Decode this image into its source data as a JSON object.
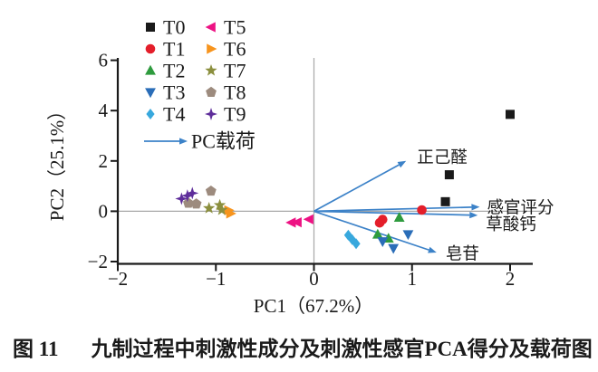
{
  "caption": {
    "tag": "图 11",
    "text": "九制过程中刺激性成分及刺激性感官PCA得分及载荷图"
  },
  "colors": {
    "axis": "#1a1a1a",
    "crosshair": "#a8a8a8",
    "loading_arrow": "#3c82c8"
  },
  "chart_data": {
    "type": "scatter",
    "title": "",
    "xlabel": "PC1（67.2%）",
    "ylabel": "PC2（25.1%）",
    "xlim": [
      -2,
      2.2
    ],
    "ylim": [
      -2.1,
      6
    ],
    "xticks": [
      -2,
      -1,
      0,
      1,
      2
    ],
    "yticks": [
      6,
      4,
      2,
      0,
      -2
    ],
    "xtick_labels": [
      "−2",
      "−1",
      "0",
      "1",
      "2"
    ],
    "ytick_labels": [
      "6",
      "4",
      "2",
      "0",
      "−2"
    ],
    "grid": false,
    "crosshair_at_origin": true,
    "legend_position": "top-left-inside",
    "series": [
      {
        "name": "T0",
        "marker": "square",
        "color": "#1a1a1a",
        "points": [
          [
            2.0,
            3.85
          ],
          [
            1.38,
            1.45
          ],
          [
            1.34,
            0.38
          ]
        ]
      },
      {
        "name": "T1",
        "marker": "circle",
        "color": "#e41e2a",
        "points": [
          [
            1.1,
            0.05
          ],
          [
            0.7,
            -0.33
          ],
          [
            0.67,
            -0.46
          ]
        ]
      },
      {
        "name": "T2",
        "marker": "triangle-up",
        "color": "#2e9b3e",
        "points": [
          [
            0.87,
            -0.25
          ],
          [
            0.65,
            -0.92
          ],
          [
            0.76,
            -1.08
          ]
        ]
      },
      {
        "name": "T3",
        "marker": "triangle-down",
        "color": "#2a6db8",
        "points": [
          [
            0.96,
            -0.92
          ],
          [
            0.7,
            -1.2
          ],
          [
            0.81,
            -1.47
          ]
        ]
      },
      {
        "name": "T4",
        "marker": "diamond",
        "color": "#38a8dd",
        "points": [
          [
            0.35,
            -0.95
          ],
          [
            0.39,
            -1.13
          ],
          [
            0.43,
            -1.29
          ]
        ]
      },
      {
        "name": "T5",
        "marker": "triangle-left",
        "color": "#ed1283",
        "points": [
          [
            -0.23,
            -0.45
          ],
          [
            -0.17,
            -0.44
          ],
          [
            -0.05,
            -0.32
          ]
        ]
      },
      {
        "name": "T6",
        "marker": "triangle-right",
        "color": "#f7941d",
        "points": [
          [
            -0.87,
            0.04
          ],
          [
            -0.85,
            -0.09
          ]
        ]
      },
      {
        "name": "T7",
        "marker": "star5",
        "color": "#8b8f3e",
        "points": [
          [
            -1.07,
            0.12
          ],
          [
            -0.96,
            0.24
          ],
          [
            -0.94,
            0.05
          ]
        ]
      },
      {
        "name": "T8",
        "marker": "pentagon",
        "color": "#9d8b7e",
        "points": [
          [
            -1.05,
            0.8
          ],
          [
            -1.28,
            0.32
          ],
          [
            -1.2,
            0.29
          ]
        ]
      },
      {
        "name": "T9",
        "marker": "star4",
        "color": "#5e2d9a",
        "points": [
          [
            -1.35,
            0.5
          ],
          [
            -1.29,
            0.62
          ],
          [
            -1.24,
            0.72
          ]
        ]
      }
    ],
    "loadings": {
      "legend_label": "PC载荷",
      "origin": [
        0,
        0
      ],
      "vectors": [
        {
          "label": "正己醛",
          "x": 0.94,
          "y": 2.0
        },
        {
          "label": "感官评分",
          "x": 1.69,
          "y": 0.17
        },
        {
          "label": "草酸钙",
          "x": 1.67,
          "y": -0.16
        },
        {
          "label": "皂苷",
          "x": 1.25,
          "y": -1.64
        }
      ]
    }
  }
}
